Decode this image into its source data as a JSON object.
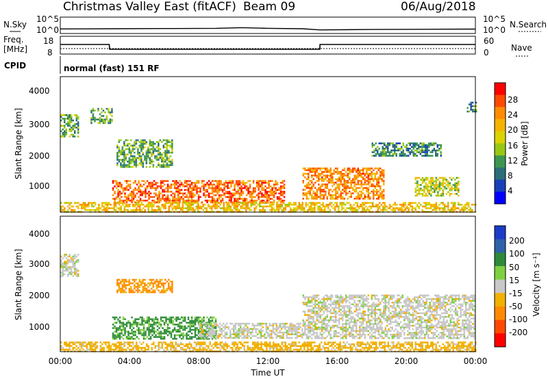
{
  "header": {
    "station": "Christmas Valley East (fitACF)",
    "beam": "Beam 09",
    "date": "06/Aug/2018"
  },
  "strip": {
    "nsky_label": "N.Sky",
    "nsearch_label": "N.Search",
    "noise_ticks": [
      "10^5",
      "10^0"
    ],
    "freq_label_1": "Freq.",
    "freq_label_2": "[MHz]",
    "freq_ticks": [
      "18",
      "8"
    ],
    "nave_ticks": [
      "60",
      "0"
    ],
    "nave_label": "Nave",
    "cpid_label": "CPID",
    "cpid_value": "normal (fast) 151 RF"
  },
  "axes": {
    "ylabel": "Slant Range [km]",
    "xlabel": "Time UT",
    "yticks": [
      "4000",
      "3000",
      "2000",
      "1000"
    ],
    "xticks": [
      "00:00",
      "04:00",
      "08:00",
      "12:00",
      "16:00",
      "20:00",
      "00:00"
    ]
  },
  "power_bar": {
    "label": "Power [dB]",
    "ticks": [
      "28",
      "24",
      "20",
      "16",
      "12",
      "8",
      "4"
    ],
    "colors": [
      "#ff0000",
      "#ff4a00",
      "#ff8c00",
      "#f5b300",
      "#dcd200",
      "#98c814",
      "#3c9650",
      "#2a6e78",
      "#1840b8",
      "#0000ff"
    ]
  },
  "velocity_bar": {
    "label": "Velocity [m s⁻¹]",
    "ticks": [
      "200",
      "100",
      "50",
      "15",
      "-15",
      "-50",
      "-100",
      "-200"
    ],
    "colors": [
      "#1c3cc8",
      "#2f62a8",
      "#2e8a3a",
      "#7ed040",
      "#c8c8c8",
      "#f2b000",
      "#ff8a00",
      "#ff4a00",
      "#ff0000"
    ]
  },
  "chart_data": [
    {
      "type": "line",
      "title": "Christmas Valley East (fitACF)",
      "xlabel": "",
      "ylabel": "",
      "series": [
        {
          "name": "N.Sky",
          "x": [
            "00:00",
            "03:00",
            "06:00",
            "09:00",
            "10:30",
            "12:00",
            "14:00",
            "15:00",
            "18:00",
            "21:00",
            "24:00"
          ],
          "values": [
            20,
            25,
            30,
            35,
            70,
            35,
            25,
            8,
            12,
            15,
            18
          ]
        }
      ],
      "ylim": [
        1,
        100000
      ],
      "scale": "log"
    },
    {
      "type": "line",
      "series": [
        {
          "name": "Freq.",
          "x": [
            "00:00",
            "02:50",
            "02:51",
            "15:00",
            "15:01",
            "24:00"
          ],
          "values": [
            14,
            14,
            10.5,
            10.5,
            14,
            14
          ]
        }
      ],
      "ylim": [
        8,
        18
      ]
    },
    {
      "type": "heatmap",
      "title": "Power [dB]",
      "xlabel": "Time UT",
      "ylabel": "Slant Range [km]",
      "x_range": [
        "00:00",
        "24:00"
      ],
      "y_range": [
        180,
        4500
      ],
      "colorbar_range": [
        0,
        32
      ],
      "regions": [
        {
          "t": [
            "00:00",
            "01:00"
          ],
          "range_km": [
            2600,
            3300
          ],
          "power_db": 12
        },
        {
          "t": [
            "01:45",
            "03:00"
          ],
          "range_km": [
            3000,
            3500
          ],
          "power_db": 12
        },
        {
          "t": [
            "03:15",
            "06:30"
          ],
          "range_km": [
            1600,
            2500
          ],
          "power_db": 12
        },
        {
          "t": [
            "03:00",
            "13:00"
          ],
          "range_km": [
            500,
            1200
          ],
          "power_db": 26
        },
        {
          "t": [
            "00:00",
            "24:00"
          ],
          "range_km": [
            180,
            500
          ],
          "power_db": 20
        },
        {
          "t": [
            "14:00",
            "18:45"
          ],
          "range_km": [
            600,
            1600
          ],
          "power_db": 24
        },
        {
          "t": [
            "20:30",
            "23:00"
          ],
          "range_km": [
            700,
            1300
          ],
          "power_db": 16
        },
        {
          "t": [
            "18:00",
            "22:00"
          ],
          "range_km": [
            2000,
            2400
          ],
          "power_db": 10
        },
        {
          "t": [
            "23:30",
            "24:00"
          ],
          "range_km": [
            3400,
            3700
          ],
          "power_db": 10
        }
      ]
    },
    {
      "type": "heatmap",
      "title": "Velocity [m s⁻¹]",
      "xlabel": "Time UT",
      "ylabel": "Slant Range [km]",
      "x_range": [
        "00:00",
        "24:00"
      ],
      "y_range": [
        180,
        4500
      ],
      "colorbar_range": [
        -250,
        250
      ],
      "regions": [
        {
          "t": [
            "00:00",
            "01:00"
          ],
          "range_km": [
            2600,
            3300
          ],
          "velocity": 0
        },
        {
          "t": [
            "03:15",
            "06:30"
          ],
          "range_km": [
            2100,
            2500
          ],
          "velocity": -60
        },
        {
          "t": [
            "03:00",
            "09:00"
          ],
          "range_km": [
            600,
            1300
          ],
          "velocity": 60
        },
        {
          "t": [
            "08:00",
            "14:00"
          ],
          "range_km": [
            600,
            1100
          ],
          "velocity": 0
        },
        {
          "t": [
            "00:00",
            "24:00"
          ],
          "range_km": [
            180,
            500
          ],
          "velocity": -30
        },
        {
          "t": [
            "14:00",
            "24:00"
          ],
          "range_km": [
            600,
            2000
          ],
          "velocity": 0
        }
      ]
    }
  ]
}
